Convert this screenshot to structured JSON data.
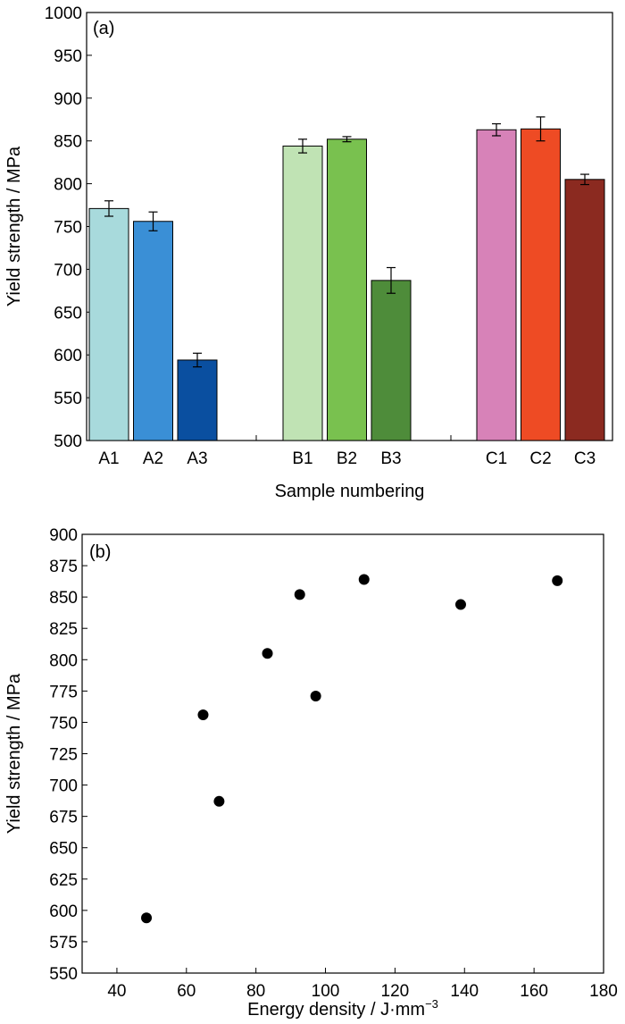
{
  "chart_data": [
    {
      "type": "bar",
      "panel_label": "(a)",
      "categories": [
        "A1",
        "A2",
        "A3",
        "B1",
        "B2",
        "B3",
        "C1",
        "C2",
        "C3"
      ],
      "groups": [
        [
          "A1",
          "A2",
          "A3"
        ],
        [
          "B1",
          "B2",
          "B3"
        ],
        [
          "C1",
          "C2",
          "C3"
        ]
      ],
      "values": [
        771,
        756,
        594,
        844,
        852,
        687,
        863,
        864,
        805
      ],
      "errors": [
        9,
        11,
        8,
        8,
        3,
        15,
        7,
        14,
        6
      ],
      "colors": [
        "#a8dadc",
        "#3a8fd6",
        "#0a4fa0",
        "#c0e3b4",
        "#79c14f",
        "#4e8c3a",
        "#d782b8",
        "#ee4b24",
        "#8b2a20"
      ],
      "ylabel": "Yield strength / MPa",
      "xlabel": "Sample numbering",
      "ylim": [
        500,
        1000
      ],
      "yticks": [
        500,
        550,
        600,
        650,
        700,
        750,
        800,
        850,
        900,
        950,
        1000
      ],
      "grid": false
    },
    {
      "type": "scatter",
      "panel_label": "(b)",
      "x": [
        48.5,
        64.8,
        69.4,
        83.3,
        92.6,
        97.2,
        111.1,
        138.9,
        166.7
      ],
      "y": [
        594,
        756,
        687,
        805,
        852,
        771,
        864,
        844,
        863
      ],
      "marker_color": "#000000",
      "xlabel": "Energy density / J·mm",
      "xlabel_sup": "−3",
      "ylabel": "Yield strength / MPa",
      "xlim": [
        30,
        180
      ],
      "ylim": [
        550,
        900
      ],
      "xticks": [
        40,
        60,
        80,
        100,
        120,
        140,
        160,
        180
      ],
      "yticks": [
        550,
        575,
        600,
        625,
        650,
        675,
        700,
        725,
        750,
        775,
        800,
        825,
        850,
        875,
        900
      ],
      "grid": false
    }
  ]
}
